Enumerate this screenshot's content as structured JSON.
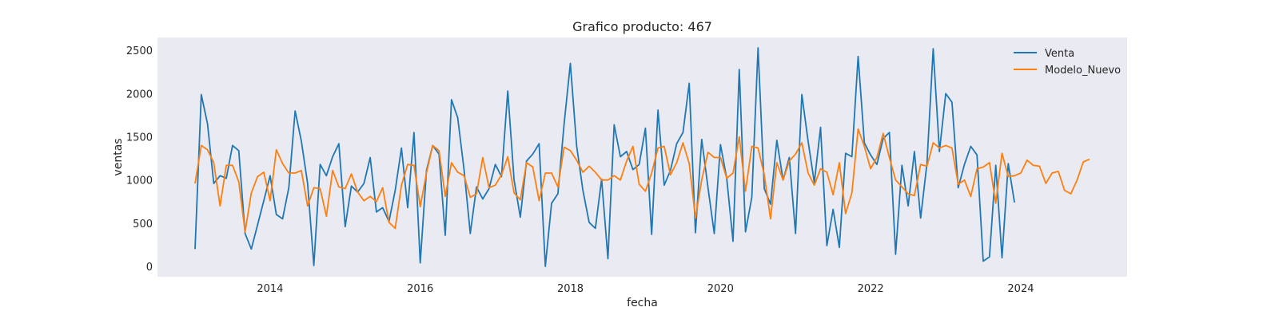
{
  "chart_data": {
    "type": "line",
    "title": "Grafico producto: 467",
    "xlabel": "fecha",
    "ylabel": "ventas",
    "x_range": [
      "2012-07-01",
      "2025-06-01"
    ],
    "ylim": [
      -120,
      2650
    ],
    "x_ticks": [
      "2014-01-01",
      "2016-01-01",
      "2018-01-01",
      "2020-01-01",
      "2022-01-01",
      "2024-01-01"
    ],
    "x_tick_labels": [
      "2014",
      "2016",
      "2018",
      "2020",
      "2022",
      "2024"
    ],
    "y_ticks": [
      0,
      500,
      1000,
      1500,
      2000,
      2500
    ],
    "y_tick_labels": [
      "0",
      "500",
      "1000",
      "1500",
      "2000",
      "2500"
    ],
    "grid": false,
    "background": "#eaeaf2",
    "legend": "top-right",
    "series": [
      {
        "name": "Venta",
        "color": "#1f77b4",
        "start": "2013-01",
        "values": [
          200,
          1990,
          1650,
          960,
          1050,
          1020,
          1400,
          1340,
          380,
          200,
          480,
          760,
          1050,
          600,
          550,
          910,
          1800,
          1450,
          960,
          10,
          1180,
          1050,
          1270,
          1420,
          460,
          930,
          860,
          960,
          1260,
          630,
          680,
          520,
          880,
          1370,
          680,
          1550,
          40,
          1110,
          1400,
          1300,
          360,
          1930,
          1720,
          1120,
          380,
          920,
          780,
          900,
          1180,
          1040,
          2030,
          1000,
          570,
          1220,
          1300,
          1420,
          0,
          730,
          840,
          1650,
          2350,
          1400,
          880,
          510,
          440,
          1010,
          90,
          1640,
          1270,
          1330,
          1120,
          1180,
          1600,
          370,
          1810,
          940,
          1110,
          1420,
          1550,
          2120,
          390,
          1470,
          910,
          380,
          1410,
          1020,
          290,
          2280,
          400,
          800,
          2530,
          900,
          720,
          1460,
          1000,
          1260,
          380,
          1990,
          1450,
          970,
          1610,
          240,
          660,
          220,
          1310,
          1270,
          2430,
          1430,
          1290,
          1180,
          1480,
          1550,
          140,
          1170,
          700,
          1330,
          560,
          1190,
          2520,
          1330,
          2000,
          1900,
          910,
          1180,
          1390,
          1290,
          60,
          110,
          1170,
          100,
          1190,
          740
        ]
      },
      {
        "name": "Modelo_Nuevo",
        "color": "#ff7f0e",
        "start": "2013-01",
        "values": [
          960,
          1400,
          1350,
          1200,
          700,
          1170,
          1170,
          980,
          400,
          850,
          1040,
          1090,
          760,
          1350,
          1190,
          1080,
          1080,
          1110,
          700,
          910,
          900,
          580,
          1110,
          920,
          900,
          1070,
          860,
          760,
          810,
          750,
          910,
          510,
          440,
          940,
          1180,
          1170,
          690,
          1080,
          1400,
          1340,
          810,
          1200,
          1090,
          1050,
          800,
          840,
          1260,
          910,
          940,
          1060,
          1270,
          850,
          770,
          1200,
          1150,
          760,
          1080,
          1080,
          920,
          1380,
          1340,
          1230,
          1090,
          1160,
          1090,
          1000,
          1000,
          1050,
          1000,
          1220,
          1390,
          950,
          870,
          1080,
          1370,
          1390,
          1060,
          1200,
          1430,
          1190,
          560,
          1000,
          1320,
          1260,
          1260,
          1020,
          1080,
          1500,
          870,
          1390,
          1370,
          1060,
          550,
          1200,
          1000,
          1220,
          1300,
          1430,
          1080,
          940,
          1130,
          1090,
          830,
          1200,
          610,
          850,
          1590,
          1390,
          1130,
          1260,
          1540,
          1260,
          1000,
          920,
          840,
          820,
          1180,
          1160,
          1430,
          1370,
          1400,
          1370,
          950,
          1000,
          810,
          1130,
          1150,
          1200,
          730,
          1310,
          1040,
          1050,
          1080,
          1230,
          1170,
          1160,
          960,
          1080,
          1100,
          880,
          840,
          1000,
          1210,
          1240
        ]
      }
    ]
  }
}
